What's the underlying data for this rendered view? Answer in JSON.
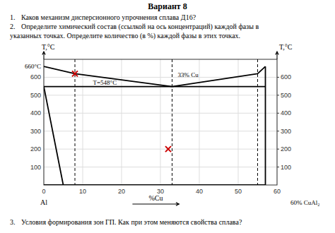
{
  "chart_data": {
    "type": "line",
    "title": "Вариант 8",
    "header_questions": [
      {
        "number": "1.",
        "lines": [
          "Каков механизм дисперсионного упрочнения сплава Д16?"
        ]
      },
      {
        "number": "2.",
        "lines": [
          "Определите химический состав (ссылкой на ось концентраций) каждой фазы в",
          "указанных точках. Определите количество (в %) каждой фазы в этих точках."
        ]
      }
    ],
    "footer_questions": [
      {
        "number": "3.",
        "lines": [
          "Условия формирования зон ГП. Как при этом меняются свойства сплава?"
        ]
      }
    ],
    "ylabel": "T,°C",
    "y2label": "T,°C",
    "xlabel": "%Cu",
    "xlabel_left": "Al",
    "xlabel_right": "60% CuAl₂",
    "xlim": [
      0,
      60
    ],
    "xticks": [
      0,
      10,
      20,
      30,
      40,
      50,
      60
    ],
    "ylim": [
      0,
      700
    ],
    "yticks": [
      100,
      200,
      300,
      400,
      500,
      600
    ],
    "y2lim": [
      0,
      700
    ],
    "y2ticks": [
      100,
      200,
      300,
      400,
      500,
      600
    ],
    "grid": true,
    "series": [
      {
        "type": "line",
        "color": "#000000",
        "x": [
          0,
          8,
          33
        ],
        "values": [
          660,
          620,
          548
        ]
      },
      {
        "type": "line",
        "color": "#000000",
        "x": [
          33,
          55,
          57
        ],
        "values": [
          548,
          620,
          660
        ]
      },
      {
        "type": "line",
        "color": "#000000",
        "x": [
          0,
          57
        ],
        "values": [
          548,
          548
        ]
      },
      {
        "type": "line",
        "color": "#000000",
        "x": [
          0,
          5
        ],
        "values": [
          548,
          0
        ]
      },
      {
        "type": "line",
        "color": "#000000",
        "x": [
          57,
          57
        ],
        "values": [
          0,
          660
        ]
      },
      {
        "type": "line",
        "color": "#000000",
        "x": [
          0,
          57
        ],
        "values": [
          0,
          0
        ]
      },
      {
        "type": "scatter",
        "marker": "x",
        "color": "#cc0000",
        "x": [
          8,
          32
        ],
        "values": [
          620,
          200
        ]
      }
    ],
    "vlines": {
      "x": [
        8,
        33,
        55
      ],
      "line_style": "dashed",
      "color": "#000000"
    },
    "annotations": [
      {
        "text": "660°C",
        "y": 660
      },
      {
        "text": "T=548°C",
        "x": 33,
        "y": 548
      },
      {
        "text": "33% Cu",
        "x": 33,
        "y": 548
      }
    ]
  }
}
